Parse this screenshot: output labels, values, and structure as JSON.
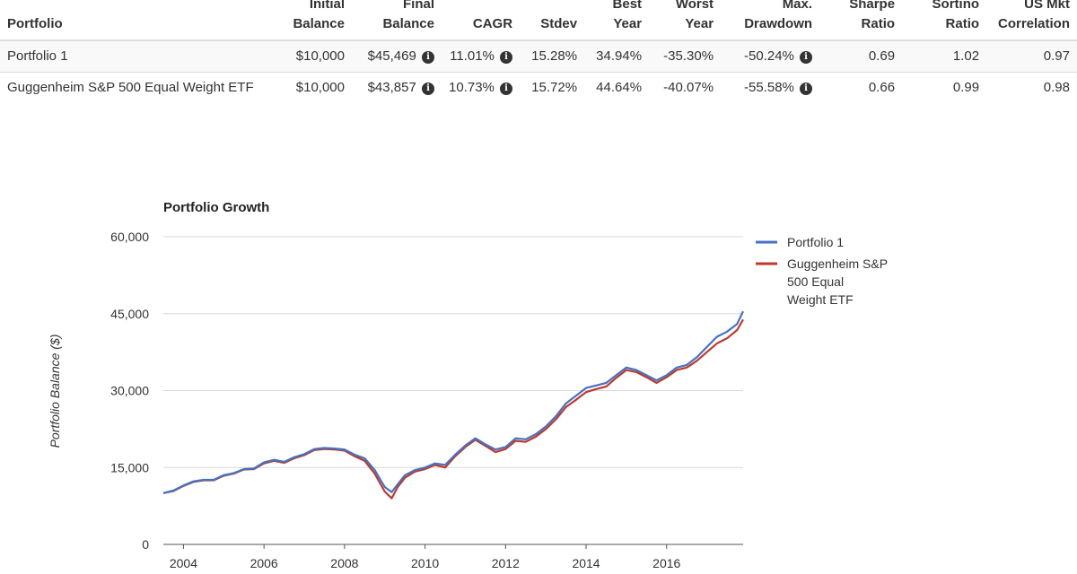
{
  "table": {
    "headers": [
      [
        "",
        "Portfolio"
      ],
      [
        "Initial",
        "Balance"
      ],
      [
        "Final",
        "Balance"
      ],
      [
        "",
        "CAGR"
      ],
      [
        "",
        "Stdev"
      ],
      [
        "Best",
        "Year"
      ],
      [
        "Worst",
        "Year"
      ],
      [
        "Max.",
        "Drawdown"
      ],
      [
        "Sharpe",
        "Ratio"
      ],
      [
        "Sortino",
        "Ratio"
      ],
      [
        "US Mkt",
        "Correlation"
      ]
    ],
    "rows": [
      {
        "portfolio": "Portfolio 1",
        "initial_balance": "$10,000",
        "final_balance": "$45,469",
        "cagr": "11.01%",
        "stdev": "15.28%",
        "best_year": "34.94%",
        "worst_year": "-35.30%",
        "max_drawdown": "-50.24%",
        "sharpe": "0.69",
        "sortino": "1.02",
        "us_mkt_correlation": "0.97"
      },
      {
        "portfolio": "Guggenheim S&P 500 Equal Weight ETF",
        "initial_balance": "$10,000",
        "final_balance": "$43,857",
        "cagr": "10.73%",
        "stdev": "15.72%",
        "best_year": "44.64%",
        "worst_year": "-40.07%",
        "max_drawdown": "-55.58%",
        "sharpe": "0.66",
        "sortino": "0.99",
        "us_mkt_correlation": "0.98"
      }
    ],
    "info_icon": "info-circle-icon",
    "info_glyph": "i"
  },
  "chart_data": {
    "type": "line",
    "title": "Portfolio Growth",
    "xlabel": "",
    "ylabel": "Portfolio Balance ($)",
    "ylim": [
      0,
      60000
    ],
    "xlim": [
      2003.5,
      2017.9
    ],
    "yticks": [
      0,
      15000,
      30000,
      45000,
      60000
    ],
    "ytick_labels": [
      "0",
      "15,000",
      "30,000",
      "45,000",
      "60,000"
    ],
    "xticks": [
      2004,
      2006,
      2008,
      2010,
      2012,
      2014,
      2016
    ],
    "xtick_labels": [
      "2004",
      "2006",
      "2008",
      "2010",
      "2012",
      "2014",
      "2016"
    ],
    "grid": true,
    "legend": "right",
    "series": [
      {
        "name": "Portfolio 1",
        "color": "#4472c4",
        "x": [
          2003.5,
          2003.75,
          2004.0,
          2004.25,
          2004.5,
          2004.75,
          2005.0,
          2005.25,
          2005.5,
          2005.75,
          2006.0,
          2006.25,
          2006.5,
          2006.75,
          2007.0,
          2007.25,
          2007.5,
          2007.75,
          2008.0,
          2008.25,
          2008.5,
          2008.75,
          2009.0,
          2009.17,
          2009.33,
          2009.5,
          2009.75,
          2010.0,
          2010.25,
          2010.5,
          2010.75,
          2011.0,
          2011.25,
          2011.5,
          2011.75,
          2012.0,
          2012.25,
          2012.5,
          2012.75,
          2013.0,
          2013.25,
          2013.5,
          2013.75,
          2014.0,
          2014.25,
          2014.5,
          2014.75,
          2015.0,
          2015.25,
          2015.5,
          2015.75,
          2016.0,
          2016.25,
          2016.5,
          2016.75,
          2017.0,
          2017.25,
          2017.5,
          2017.75,
          2017.9
        ],
        "values": [
          10000,
          10500,
          11500,
          12300,
          12600,
          12600,
          13500,
          13900,
          14700,
          14800,
          16000,
          16500,
          16100,
          17000,
          17600,
          18600,
          18800,
          18700,
          18500,
          17500,
          16800,
          14500,
          11200,
          10200,
          11800,
          13500,
          14500,
          15000,
          15800,
          15500,
          17500,
          19300,
          20700,
          19500,
          18500,
          19000,
          20700,
          20500,
          21500,
          23000,
          25000,
          27500,
          29000,
          30500,
          31000,
          31500,
          33000,
          34500,
          34000,
          33000,
          32000,
          33000,
          34500,
          35000,
          36500,
          38500,
          40500,
          41500,
          43000,
          45469
        ]
      },
      {
        "name": "Guggenheim S&P 500 Equal Weight ETF",
        "color": "#c0392b",
        "x": [
          2003.5,
          2003.75,
          2004.0,
          2004.25,
          2004.5,
          2004.75,
          2005.0,
          2005.25,
          2005.5,
          2005.75,
          2006.0,
          2006.25,
          2006.5,
          2006.75,
          2007.0,
          2007.25,
          2007.5,
          2007.75,
          2008.0,
          2008.25,
          2008.5,
          2008.75,
          2009.0,
          2009.17,
          2009.33,
          2009.5,
          2009.75,
          2010.0,
          2010.25,
          2010.5,
          2010.75,
          2011.0,
          2011.25,
          2011.5,
          2011.75,
          2012.0,
          2012.25,
          2012.5,
          2012.75,
          2013.0,
          2013.25,
          2013.5,
          2013.75,
          2014.0,
          2014.25,
          2014.5,
          2014.75,
          2015.0,
          2015.25,
          2015.5,
          2015.75,
          2016.0,
          2016.25,
          2016.5,
          2016.75,
          2017.0,
          2017.25,
          2017.5,
          2017.75,
          2017.9
        ],
        "values": [
          10000,
          10400,
          11400,
          12200,
          12500,
          12500,
          13400,
          13800,
          14600,
          14700,
          15800,
          16300,
          15900,
          16800,
          17400,
          18400,
          18600,
          18500,
          18300,
          17200,
          16300,
          13800,
          10300,
          9000,
          11300,
          13000,
          14200,
          14700,
          15500,
          15000,
          17200,
          19000,
          20400,
          19200,
          18000,
          18600,
          20200,
          20000,
          21000,
          22500,
          24400,
          26800,
          28200,
          29700,
          30300,
          30800,
          32500,
          34000,
          33600,
          32600,
          31500,
          32600,
          34000,
          34500,
          35800,
          37500,
          39200,
          40200,
          41800,
          43857
        ]
      }
    ]
  }
}
